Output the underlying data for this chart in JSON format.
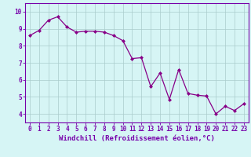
{
  "x": [
    0,
    1,
    2,
    3,
    4,
    5,
    6,
    7,
    8,
    9,
    10,
    11,
    12,
    13,
    14,
    15,
    16,
    17,
    18,
    19,
    20,
    21,
    22,
    23
  ],
  "y": [
    8.6,
    8.9,
    9.5,
    9.7,
    9.1,
    8.8,
    8.85,
    8.85,
    8.8,
    8.6,
    8.3,
    7.25,
    7.3,
    5.6,
    6.4,
    4.85,
    6.6,
    5.2,
    5.1,
    5.05,
    4.0,
    4.45,
    4.2,
    4.6
  ],
  "line_color": "#880088",
  "marker": "D",
  "markersize": 2.0,
  "linewidth": 0.9,
  "xlabel": "Windchill (Refroidissement éolien,°C)",
  "xlabel_fontsize": 6.5,
  "bg_color": "#d6f5f5",
  "grid_color": "#aacccc",
  "ylim": [
    3.5,
    10.5
  ],
  "xlim": [
    -0.5,
    23.5
  ],
  "yticks": [
    4,
    5,
    6,
    7,
    8,
    9,
    10
  ],
  "xticks": [
    0,
    1,
    2,
    3,
    4,
    5,
    6,
    7,
    8,
    9,
    10,
    11,
    12,
    13,
    14,
    15,
    16,
    17,
    18,
    19,
    20,
    21,
    22,
    23
  ],
  "tick_fontsize": 5.5,
  "spine_color": "#7700aa",
  "xlabel_color": "#7700aa"
}
